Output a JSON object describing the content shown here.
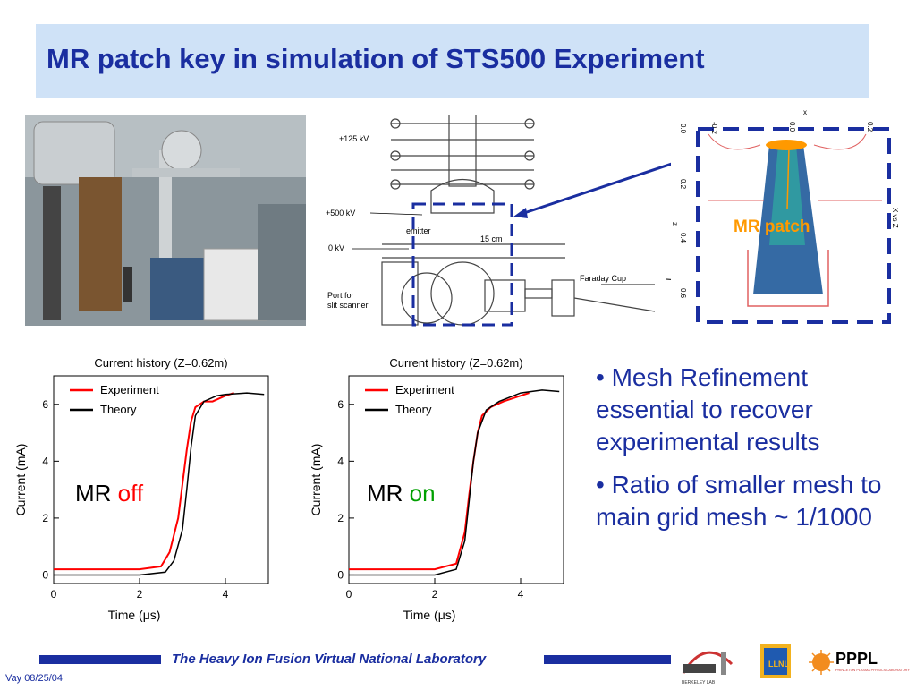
{
  "slide": {
    "title": "MR patch key in simulation of STS500 Experiment",
    "footer": "The Heavy Ion Fusion Virtual National Laboratory",
    "date": "Vay 08/25/04"
  },
  "schematic": {
    "labels": [
      "+125 kV",
      "+500 kV",
      "0 kV",
      "emitter",
      "15 cm",
      "Faraday Cup",
      "Port for",
      "slit scanner"
    ]
  },
  "sim": {
    "x_axis_title": "x",
    "x_ticks": [
      "-0.2",
      "0.0",
      "0.2"
    ],
    "z_axis_title": "z",
    "z_ticks": [
      "0.0",
      "0.2",
      "0.4",
      "0.6"
    ],
    "side_label": "X vs Z",
    "patch_label": "MR patch"
  },
  "bullets": [
    "• Mesh Refinement essential to recover experimental results",
    "•  Ratio of smaller mesh to main grid mesh ~ 1/1000"
  ],
  "mr_labels": {
    "left_prefix": "MR",
    "left_state": "off",
    "right_prefix": "MR",
    "right_state": "on"
  },
  "colors": {
    "title": "#1a2ea0",
    "title_bg": "#cfe2f7",
    "experiment": "#ff0000",
    "theory": "#000000",
    "off": "#ff0000",
    "on": "#00a000",
    "patch": "#ff9900"
  },
  "logos": [
    "BERKELEY LAB",
    "LLNL",
    "PPPL",
    "PRINCETON PLASMA PHYSICS LABORATORY"
  ],
  "chart_data": [
    {
      "type": "line",
      "title": "Current history (Z=0.62m)",
      "xlabel": "Time (μs)",
      "ylabel": "Current (mA)",
      "xlim": [
        0,
        5
      ],
      "ylim": [
        -0.3,
        7
      ],
      "xticks": [
        "0",
        "2",
        "4"
      ],
      "yticks": [
        "0",
        "2",
        "4",
        "6"
      ],
      "legend": "top-left",
      "series": [
        {
          "name": "Experiment",
          "x": [
            0,
            0.5,
            1.0,
            1.5,
            2.0,
            2.5,
            2.7,
            2.9,
            3.0,
            3.1,
            3.2,
            3.3,
            3.5,
            3.7,
            4.0,
            4.2
          ],
          "y": [
            0.2,
            0.2,
            0.2,
            0.2,
            0.2,
            0.3,
            0.8,
            2.0,
            3.2,
            4.4,
            5.4,
            5.9,
            6.1,
            6.1,
            6.3,
            6.4
          ]
        },
        {
          "name": "Theory",
          "x": [
            0,
            1.0,
            2.0,
            2.6,
            2.8,
            3.0,
            3.1,
            3.2,
            3.3,
            3.5,
            3.8,
            4.0,
            4.5,
            4.9
          ],
          "y": [
            0,
            0,
            0,
            0.1,
            0.5,
            1.6,
            3.0,
            4.5,
            5.6,
            6.1,
            6.3,
            6.35,
            6.4,
            6.35
          ]
        }
      ]
    },
    {
      "type": "line",
      "title": "Current history (Z=0.62m)",
      "xlabel": "Time (μs)",
      "ylabel": "Current (mA)",
      "xlim": [
        0,
        5
      ],
      "ylim": [
        -0.3,
        7
      ],
      "xticks": [
        "0",
        "2",
        "4"
      ],
      "yticks": [
        "0",
        "2",
        "4",
        "6"
      ],
      "legend": "top-left",
      "series": [
        {
          "name": "Experiment",
          "x": [
            0,
            0.5,
            1.0,
            1.5,
            2.0,
            2.5,
            2.7,
            2.8,
            2.9,
            3.0,
            3.1,
            3.3,
            3.6,
            4.0,
            4.2
          ],
          "y": [
            0.2,
            0.2,
            0.2,
            0.2,
            0.2,
            0.4,
            1.5,
            2.8,
            4.0,
            5.0,
            5.6,
            5.9,
            6.1,
            6.3,
            6.4
          ]
        },
        {
          "name": "Theory",
          "x": [
            0,
            1.0,
            2.0,
            2.5,
            2.7,
            2.8,
            2.9,
            3.0,
            3.2,
            3.5,
            4.0,
            4.5,
            4.9
          ],
          "y": [
            0,
            0,
            0,
            0.2,
            1.2,
            2.6,
            4.0,
            5.0,
            5.8,
            6.1,
            6.4,
            6.5,
            6.45
          ]
        }
      ]
    }
  ]
}
